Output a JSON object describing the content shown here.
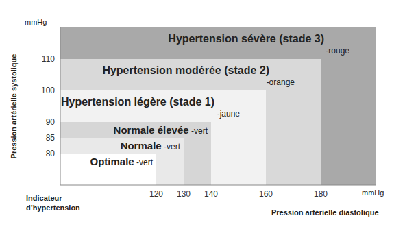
{
  "chart_data": {
    "type": "zones",
    "x_label": "Pression artérielle diastolique",
    "y_label": "Pression artérielle systolique",
    "x_unit": "mmHg",
    "y_unit": "mmHg",
    "corner_label": "Indicateur d’hypertension",
    "xlim": [
      85,
      200
    ],
    "xticks": [
      120,
      130,
      140,
      160,
      180
    ],
    "ylim": [
      70,
      120
    ],
    "yticks": [
      80,
      85,
      90,
      100,
      110
    ],
    "zones": [
      {
        "name": "Optimale",
        "color_label": "-vert",
        "x_max": 120,
        "y_max": 80,
        "color": "#ffffff"
      },
      {
        "name": "Normale",
        "color_label": "-vert",
        "x_max": 130,
        "y_max": 85,
        "color": "#e9e9e9"
      },
      {
        "name": "Normale élevée",
        "color_label": "-vert",
        "x_max": 140,
        "y_max": 90,
        "color": "#d6d6d6"
      },
      {
        "name": "Hypertension légère (stade 1)",
        "color_label": "-jaune",
        "x_max": 160,
        "y_max": 100,
        "color": "#f2f2f2"
      },
      {
        "name": "Hypertension modérée (stade 2)",
        "color_label": "-orange",
        "x_max": 180,
        "y_max": 110,
        "color": "#d9d9d9"
      },
      {
        "name": "Hypertension sévère (stade 3)",
        "color_label": "-rouge",
        "x_max": 200,
        "y_max": 120,
        "color": "#a9a9a9"
      }
    ]
  }
}
